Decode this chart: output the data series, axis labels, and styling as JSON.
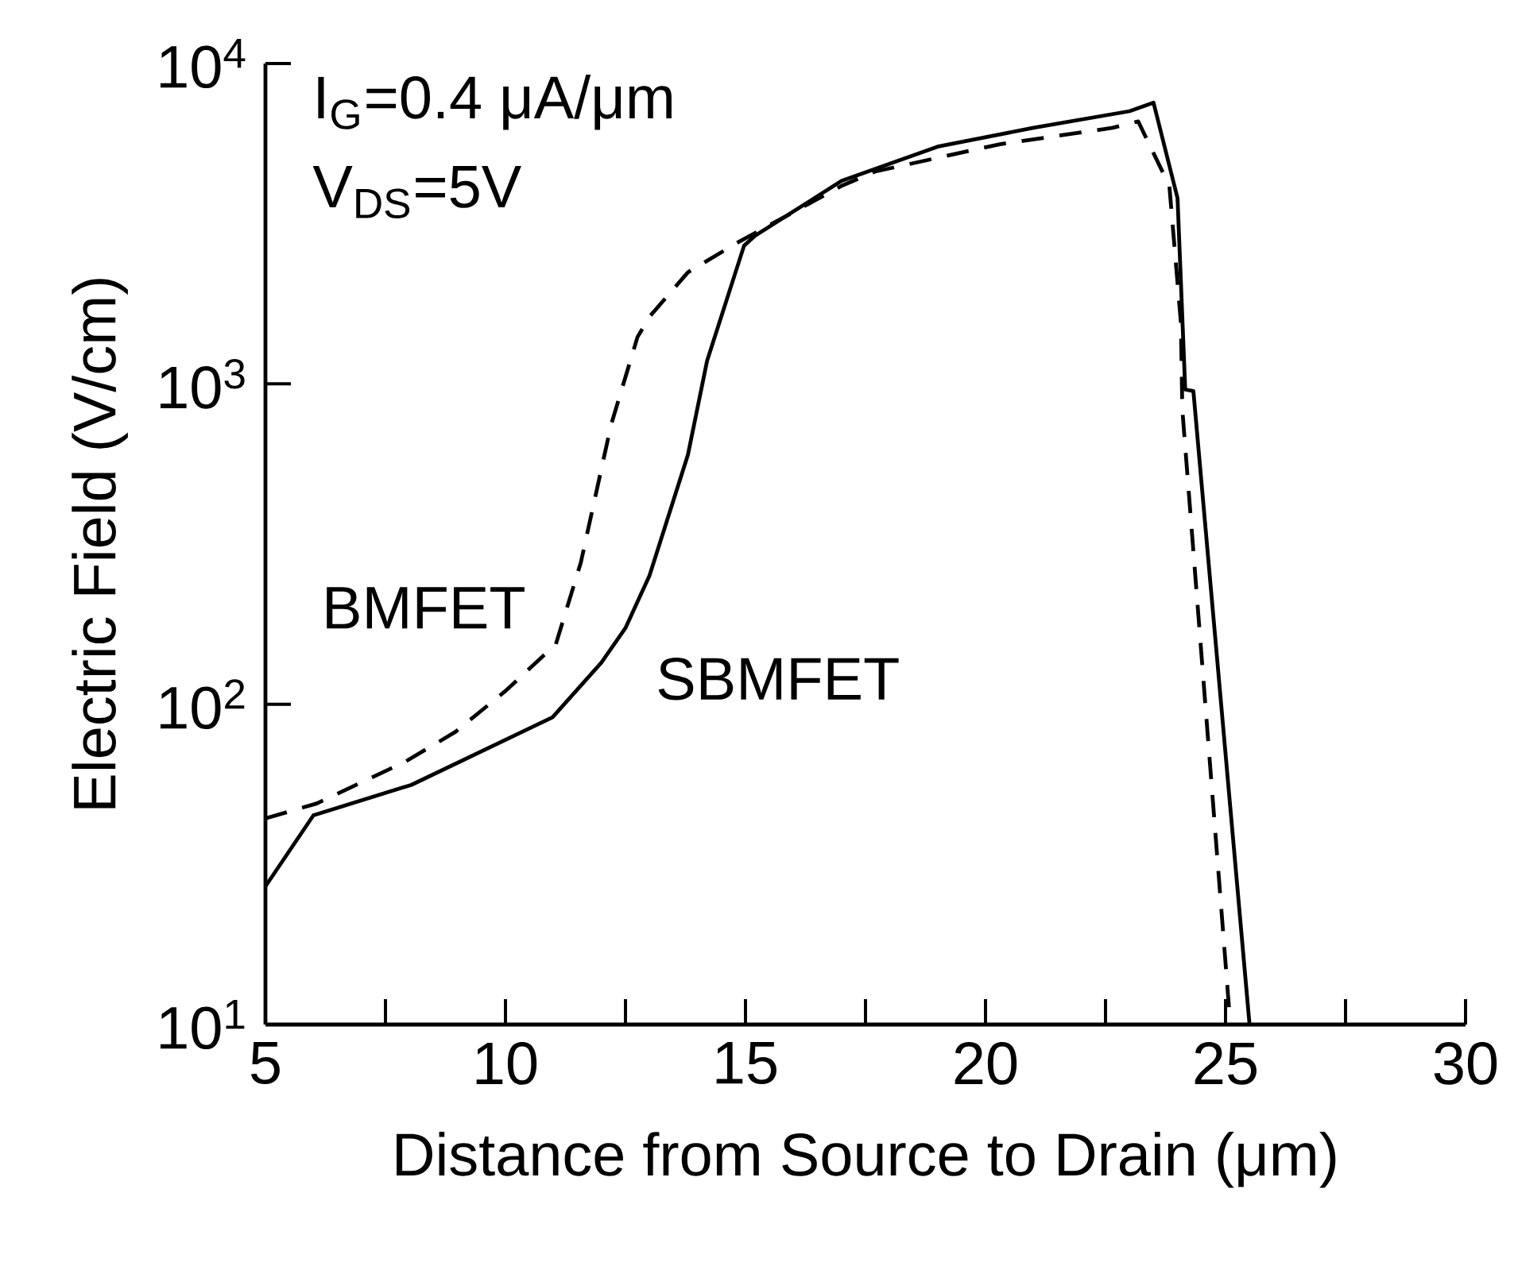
{
  "chart_data": {
    "type": "line",
    "xlabel": "Distance from Source to Drain (μm)",
    "ylabel": "Electric Field (V/cm)",
    "log": true,
    "xlim": [
      5,
      30
    ],
    "xticks": [
      5,
      {
        "value": 7.5,
        "label": null
      },
      10,
      {
        "value": 12.5,
        "label": null
      },
      15,
      {
        "value": 17.5,
        "label": null
      },
      20,
      {
        "value": 22.5,
        "label": null
      },
      25,
      {
        "value": 27.5,
        "label": null
      },
      30
    ],
    "ylim": [
      10,
      10000
    ],
    "yticks": [
      {
        "value": 10,
        "label": "10$^{1}$"
      },
      {
        "value": 100,
        "label": "10$^{2}$"
      },
      {
        "value": 1000,
        "label": "10$^{3}$"
      },
      {
        "value": 10000,
        "label": "10$^{4}$"
      }
    ],
    "grid": false,
    "legend": false,
    "marker": "none",
    "annotations": [
      "I$_{G}$=0.4 μA/μm",
      "V$_{DS}$=5V"
    ],
    "series": [
      {
        "name": "SBMFET",
        "color": "#000000",
        "line_style": "solid",
        "x": [
          5,
          6,
          8.04,
          10.98,
          12,
          12.5,
          13,
          13.8,
          14.2,
          14.97,
          15.2,
          17,
          19,
          21,
          23,
          23.5,
          24,
          24.16,
          24.33,
          25.5
        ],
        "values": [
          27,
          45,
          56,
          91,
          135,
          173,
          252,
          600,
          1180,
          2700,
          2900,
          4300,
          5500,
          6300,
          7100,
          7550,
          3800,
          960,
          950,
          10
        ]
      },
      {
        "name": "BMFET",
        "color": "#000000",
        "line_style": "dashed",
        "x": [
          5,
          6.07,
          7.9,
          8.96,
          10,
          11.05,
          11.57,
          12.2,
          12.75,
          13,
          13.8,
          14.85,
          17,
          17.7,
          20.3,
          22.65,
          23.18,
          23.83,
          24.07,
          24.1,
          25.1
        ],
        "values": [
          44,
          49,
          66,
          82,
          110,
          154,
          277,
          745,
          1400,
          1620,
          2230,
          2770,
          4150,
          4600,
          5600,
          6300,
          6600,
          4150,
          1550,
          830,
          10
        ]
      }
    ]
  }
}
